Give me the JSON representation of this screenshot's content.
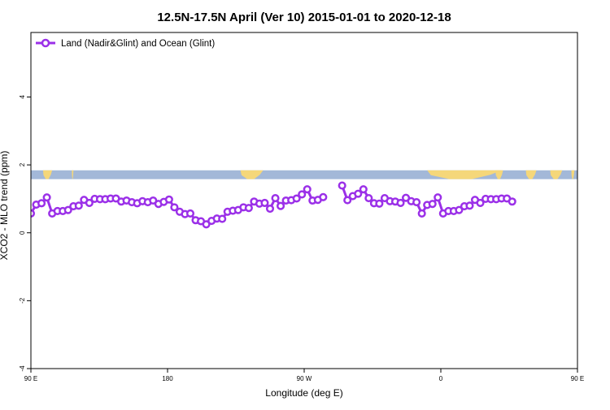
{
  "chart_data": {
    "type": "line",
    "title": "12.5N-17.5N April (Ver 10)   2015-01-01 to 2020-12-18",
    "xlabel": "Longitude (deg E)",
    "ylabel": "XCO2 - MLO trend (ppm)",
    "xlim": [
      90,
      450
    ],
    "ylim": [
      -4,
      5.9
    ],
    "x_ticks": [
      {
        "value": 90,
        "label": "90 E"
      },
      {
        "value": 180,
        "label": "180"
      },
      {
        "value": 270,
        "label": "90 W"
      },
      {
        "value": 360,
        "label": "0"
      },
      {
        "value": 450,
        "label": "90 E"
      }
    ],
    "x_ticks_extra": [
      {
        "value": 540,
        "label": "180"
      }
    ],
    "y_ticks": [
      -4,
      -2,
      0,
      2,
      4
    ],
    "legend": {
      "placement": "top-left"
    },
    "colors": {
      "series": "#9b30e8",
      "ocean": "#a3b8d8",
      "land": "#f5d77a"
    },
    "land_band": {
      "y_range": [
        1.58,
        1.84
      ]
    },
    "land_segments": [
      [
        98,
        104
      ],
      [
        117,
        118
      ],
      [
        228,
        243
      ],
      [
        351,
        400
      ],
      [
        396,
        401
      ],
      [
        416,
        423
      ],
      [
        432,
        440
      ],
      [
        446,
        448
      ]
    ],
    "series": [
      {
        "name": "Land (Nadir&Glint) and Ocean (Glint)",
        "points": [
          [
            90,
            0.57
          ],
          [
            93.5,
            0.83
          ],
          [
            97,
            0.87
          ],
          [
            100.5,
            1.04
          ],
          [
            104,
            0.57
          ],
          [
            107.5,
            0.64
          ],
          [
            111,
            0.64
          ],
          [
            114.5,
            0.67
          ],
          [
            118,
            0.78
          ],
          [
            121.5,
            0.8
          ],
          [
            125,
            0.97
          ],
          [
            128.5,
            0.88
          ],
          [
            132,
            1.0
          ],
          [
            135.5,
            0.99
          ],
          [
            139,
            0.99
          ],
          [
            142.5,
            1.01
          ],
          [
            146,
            1.01
          ],
          [
            149.5,
            0.92
          ],
          [
            153,
            0.95
          ],
          [
            156.5,
            0.9
          ],
          [
            160,
            0.87
          ],
          [
            163.5,
            0.93
          ],
          [
            167,
            0.9
          ],
          [
            170.5,
            0.95
          ],
          [
            174,
            0.85
          ],
          [
            177.5,
            0.91
          ],
          [
            181,
            0.98
          ],
          [
            184.5,
            0.75
          ],
          [
            188,
            0.62
          ],
          [
            191.5,
            0.55
          ],
          [
            195,
            0.57
          ],
          [
            198.5,
            0.37
          ],
          [
            202,
            0.34
          ],
          [
            205.5,
            0.25
          ],
          [
            209,
            0.35
          ],
          [
            212.5,
            0.42
          ],
          [
            216,
            0.41
          ],
          [
            219.5,
            0.62
          ],
          [
            223,
            0.65
          ],
          [
            226.5,
            0.67
          ],
          [
            230,
            0.75
          ],
          [
            233.5,
            0.73
          ],
          [
            237,
            0.92
          ],
          [
            240.5,
            0.86
          ],
          [
            244,
            0.88
          ],
          [
            247.5,
            0.71
          ],
          [
            251,
            1.02
          ],
          [
            254.5,
            0.79
          ],
          [
            258,
            0.95
          ],
          [
            261.5,
            0.96
          ],
          [
            265,
            1.01
          ],
          [
            268.5,
            1.13
          ],
          [
            272,
            1.28
          ],
          [
            275.5,
            0.95
          ],
          [
            279,
            0.97
          ],
          [
            282.5,
            1.05
          ],
          null,
          [
            295,
            1.39
          ],
          [
            298.5,
            0.96
          ],
          [
            302,
            1.08
          ],
          [
            305.5,
            1.15
          ],
          [
            309,
            1.28
          ],
          [
            312.5,
            1.02
          ],
          [
            316,
            0.87
          ],
          [
            319.5,
            0.86
          ],
          [
            323,
            1.02
          ],
          [
            326.5,
            0.93
          ],
          [
            330,
            0.92
          ],
          [
            333.5,
            0.88
          ],
          [
            337,
            1.03
          ],
          [
            340.5,
            0.93
          ],
          [
            344,
            0.9
          ],
          [
            347.5,
            0.57
          ],
          [
            351,
            0.82
          ],
          [
            354.5,
            0.85
          ],
          [
            358,
            1.04
          ],
          [
            361.5,
            0.57
          ],
          [
            365,
            0.64
          ],
          [
            368.5,
            0.64
          ],
          [
            372,
            0.67
          ],
          [
            375.5,
            0.78
          ],
          [
            379,
            0.8
          ],
          [
            382.5,
            0.97
          ],
          [
            386,
            0.88
          ],
          [
            389.5,
            1.0
          ],
          [
            393,
            0.99
          ],
          [
            396.5,
            0.99
          ],
          [
            400,
            1.01
          ],
          [
            403.5,
            1.01
          ],
          [
            407,
            0.92
          ]
        ]
      }
    ]
  }
}
